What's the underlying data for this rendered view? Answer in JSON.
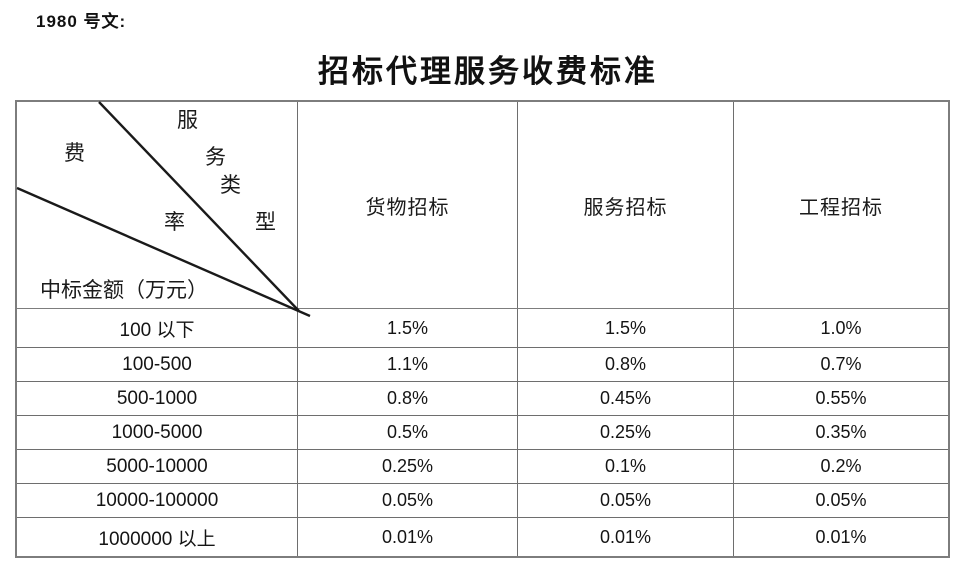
{
  "doc_label": "1980 号文:",
  "title": "招标代理服务收费标准",
  "table": {
    "corner": {
      "fee_char": "费",
      "rate_char": "率",
      "service_char_1": "服",
      "service_char_2": "务",
      "service_char_3": "类",
      "service_char_4": "型",
      "bottom_label": "中标金额（万元）"
    },
    "columns": [
      "货物招标",
      "服务招标",
      "工程招标"
    ],
    "rows": [
      {
        "range": "100 以下",
        "values": [
          "1.5%",
          "1.5%",
          "1.0%"
        ]
      },
      {
        "range": "100-500",
        "values": [
          "1.1%",
          "0.8%",
          "0.7%"
        ]
      },
      {
        "range": "500-1000",
        "values": [
          "0.8%",
          "0.45%",
          "0.55%"
        ]
      },
      {
        "range": "1000-5000",
        "values": [
          "0.5%",
          "0.25%",
          "0.35%"
        ]
      },
      {
        "range": "5000-10000",
        "values": [
          "0.25%",
          "0.1%",
          "0.2%"
        ]
      },
      {
        "range": "10000-100000",
        "values": [
          "0.05%",
          "0.05%",
          "0.05%"
        ]
      },
      {
        "range": "1000000 以上",
        "values": [
          "0.01%",
          "0.01%",
          "0.01%"
        ]
      }
    ],
    "colors": {
      "border": "#7d7d7d",
      "diagonal": "#1a1a1a",
      "text": "#1a1a1a"
    }
  }
}
